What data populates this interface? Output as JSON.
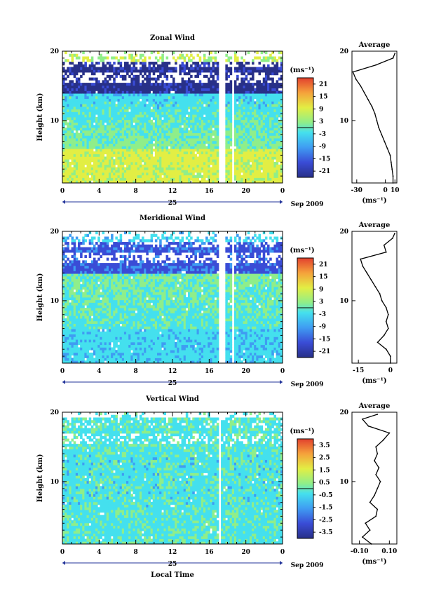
{
  "chart_data": [
    {
      "type": "heatmap",
      "title": "Zonal Wind",
      "ylabel": "Height (km)",
      "units_label": "(ms⁻¹)",
      "x_ticks": [
        "0",
        "4",
        "8",
        "12",
        "16",
        "20",
        "0"
      ],
      "xlim": [
        0,
        24
      ],
      "y_ticks": [
        "10",
        "20"
      ],
      "ylim": [
        1,
        20
      ],
      "date_label": "25",
      "month_label": "Sep 2009",
      "colorbar_ticks": [
        "21",
        "15",
        "9",
        "3",
        "-3",
        "-9",
        "-15",
        "-21"
      ],
      "colorbar_range": [
        -24,
        24
      ],
      "features": {
        "low_jet": 8,
        "mid": -4,
        "upper": -20,
        "top": 6,
        "gaps": [
          [
            17.0,
            17.7
          ],
          [
            18.5,
            18.8
          ]
        ]
      },
      "average_profile": {
        "title": "Average",
        "xlabel": "(ms⁻¹)",
        "x_ticks": [
          "-30",
          "0",
          "10"
        ],
        "xlim": [
          -35,
          12
        ],
        "y_ticks": [
          "10",
          "20"
        ],
        "height_km": [
          1,
          2,
          3,
          4,
          5,
          6,
          7,
          8,
          9,
          10,
          11,
          12,
          13,
          14,
          15,
          16,
          17,
          18,
          19,
          19.7
        ],
        "values": [
          8,
          8,
          7,
          6,
          5,
          2,
          -1,
          -4,
          -7,
          -9,
          -11,
          -14,
          -18,
          -22,
          -26,
          -31,
          -34,
          -10,
          8,
          10
        ]
      }
    },
    {
      "type": "heatmap",
      "title": "Meridional Wind",
      "ylabel": "Height (km)",
      "units_label": "(ms⁻¹)",
      "x_ticks": [
        "0",
        "4",
        "8",
        "12",
        "16",
        "20",
        "0"
      ],
      "xlim": [
        0,
        24
      ],
      "y_ticks": [
        "10",
        "20"
      ],
      "ylim": [
        1,
        20
      ],
      "date_label": "25",
      "month_label": "Sep 2009",
      "colorbar_ticks": [
        "21",
        "15",
        "9",
        "3",
        "-3",
        "-9",
        "-15",
        "-21"
      ],
      "colorbar_range": [
        -24,
        24
      ],
      "features": {
        "low_jet": -4,
        "mid": 1,
        "upper": -14,
        "top": -4,
        "gaps": [
          [
            17.0,
            17.7
          ],
          [
            18.5,
            18.8
          ]
        ]
      },
      "average_profile": {
        "title": "Average",
        "xlabel": "(ms⁻¹)",
        "x_ticks": [
          "-15",
          "0"
        ],
        "xlim": [
          -18,
          3
        ],
        "y_ticks": [
          "10",
          "20"
        ],
        "height_km": [
          1,
          2,
          3,
          4,
          5,
          6,
          7,
          8,
          9,
          10,
          11,
          12,
          13,
          14,
          15,
          16,
          17,
          18,
          19,
          19.7
        ],
        "values": [
          0,
          0,
          -2,
          -6,
          -3,
          -1,
          -2,
          -1,
          -2,
          -4,
          -5,
          -7,
          -9,
          -11,
          -13,
          -14,
          -2,
          -3,
          1,
          2
        ]
      }
    },
    {
      "type": "heatmap",
      "title": "Vertical Wind",
      "ylabel": "Height (km)",
      "units_label": "(ms⁻¹)",
      "xlabel": "Local Time",
      "x_ticks": [
        "0",
        "4",
        "8",
        "12",
        "16",
        "20",
        "0"
      ],
      "xlim": [
        0,
        24
      ],
      "y_ticks": [
        "10",
        "20"
      ],
      "ylim": [
        1,
        20
      ],
      "date_label": "25",
      "month_label": "Sep 2009",
      "colorbar_ticks": [
        "3.5",
        "2.5",
        "1.5",
        "0.5",
        "-0.5",
        "-1.5",
        "-2.5",
        "-3.5"
      ],
      "colorbar_range": [
        -4,
        4
      ],
      "features": {
        "low_jet": -0.3,
        "mid": -0.4,
        "upper": -0.3,
        "top": -0.3,
        "gaps": [
          [
            17.0,
            17.3
          ]
        ]
      },
      "average_profile": {
        "title": "Average",
        "xlabel": "(ms⁻¹)",
        "x_ticks": [
          "-0.10",
          "0.10"
        ],
        "xlim": [
          -0.15,
          0.15
        ],
        "y_ticks": [
          "10",
          "20"
        ],
        "height_km": [
          1,
          2,
          3,
          4,
          5,
          6,
          7,
          8,
          9,
          10,
          11,
          12,
          13,
          14,
          15,
          16,
          17,
          18,
          19,
          19.7
        ],
        "values": [
          -0.02,
          -0.08,
          -0.03,
          -0.06,
          0.01,
          0.02,
          -0.03,
          0.0,
          0.02,
          0.04,
          0.01,
          0.03,
          0.0,
          0.02,
          0.01,
          0.06,
          0.1,
          -0.04,
          -0.08,
          0.02
        ]
      }
    }
  ]
}
